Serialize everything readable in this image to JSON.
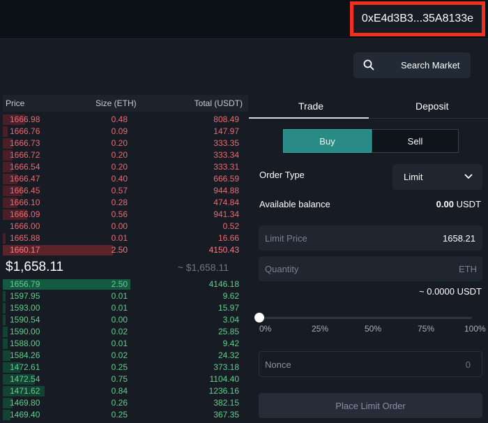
{
  "header": {
    "wallet_address": "0xE4d3B3...35A8133e"
  },
  "search": {
    "label": "Search Market"
  },
  "orderbook": {
    "columns": {
      "price": "Price",
      "size": "Size (ETH)",
      "total": "Total (USDT)"
    },
    "asks": [
      {
        "price": "1666.98",
        "size": "0.48",
        "total": "808.49",
        "depth": 0.09
      },
      {
        "price": "1666.76",
        "size": "0.09",
        "total": "147.97",
        "depth": 0.02
      },
      {
        "price": "1666.73",
        "size": "0.20",
        "total": "333.35",
        "depth": 0.04
      },
      {
        "price": "1666.72",
        "size": "0.20",
        "total": "333.34",
        "depth": 0.04
      },
      {
        "price": "1666.54",
        "size": "0.20",
        "total": "333.31",
        "depth": 0.04
      },
      {
        "price": "1666.47",
        "size": "0.40",
        "total": "666.59",
        "depth": 0.06
      },
      {
        "price": "1666.45",
        "size": "0.57",
        "total": "944.88",
        "depth": 0.08
      },
      {
        "price": "1666.10",
        "size": "0.28",
        "total": "474.84",
        "depth": 0.06
      },
      {
        "price": "1666.09",
        "size": "0.56",
        "total": "941.34",
        "depth": 0.1
      },
      {
        "price": "1666.00",
        "size": "0.00",
        "total": "0.52",
        "depth": 0.0
      },
      {
        "price": "1665.88",
        "size": "0.01",
        "total": "16.66",
        "depth": 0.01
      },
      {
        "price": "1660.17",
        "size": "2.50",
        "total": "4150.43",
        "depth": 0.45
      }
    ],
    "mid_price": "$1,658.11",
    "mid_price_approx": "~ $1,658.11",
    "bids": [
      {
        "price": "1656.79",
        "size": "2.50",
        "total": "4146.18",
        "depth": 0.52
      },
      {
        "price": "1597.95",
        "size": "0.01",
        "total": "9.62",
        "depth": 0.01
      },
      {
        "price": "1593.00",
        "size": "0.01",
        "total": "15.97",
        "depth": 0.01
      },
      {
        "price": "1590.54",
        "size": "0.00",
        "total": "3.04",
        "depth": 0.01
      },
      {
        "price": "1590.00",
        "size": "0.02",
        "total": "25.85",
        "depth": 0.02
      },
      {
        "price": "1588.00",
        "size": "0.01",
        "total": "9.42",
        "depth": 0.02
      },
      {
        "price": "1584.26",
        "size": "0.02",
        "total": "24.32",
        "depth": 0.03
      },
      {
        "price": "1472.61",
        "size": "0.25",
        "total": "373.18",
        "depth": 0.07
      },
      {
        "price": "1472.54",
        "size": "0.75",
        "total": "1104.40",
        "depth": 0.13
      },
      {
        "price": "1471.62",
        "size": "0.84",
        "total": "1236.16",
        "depth": 0.17
      },
      {
        "price": "1469.80",
        "size": "0.26",
        "total": "382.15",
        "depth": 0.04
      },
      {
        "price": "1469.40",
        "size": "0.25",
        "total": "367.35",
        "depth": 0.03
      }
    ]
  },
  "trade": {
    "tabs": [
      "Trade",
      "Deposit"
    ],
    "buy_label": "Buy",
    "sell_label": "Sell",
    "order_type_label": "Order Type",
    "order_type_value": "Limit",
    "available_balance_label": "Available balance",
    "available_balance_value": "0.00",
    "available_balance_unit": "USDT",
    "limit_price_label": "Limit Price",
    "limit_price_value": "1658.21",
    "quantity_label": "Quantity",
    "quantity_unit": "ETH",
    "approx_total": "~ 0.0000 USDT",
    "slider_value": 0,
    "slider_ticks": [
      "0%",
      "25%",
      "50%",
      "75%",
      "100%"
    ],
    "nonce_label": "Nonce",
    "nonce_value": "0",
    "place_order_label": "Place Limit Order"
  }
}
